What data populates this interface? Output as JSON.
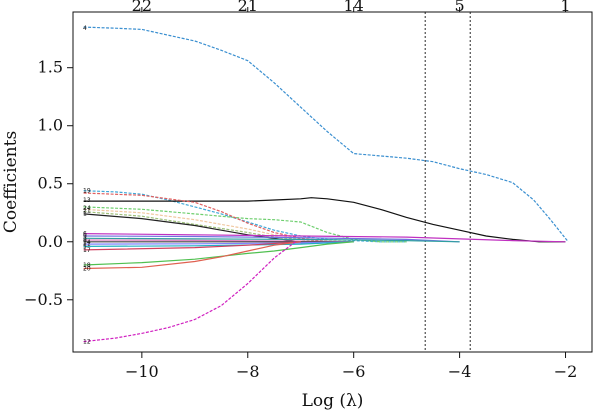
{
  "chart_data": {
    "type": "line",
    "xlabel": "Log (λ)",
    "ylabel": "Coefficients",
    "xlim": [
      -11.3,
      -1.5
    ],
    "ylim": [
      -0.95,
      1.98
    ],
    "x_ticks": [
      {
        "value": -10,
        "label": "−10"
      },
      {
        "value": -8,
        "label": "−8"
      },
      {
        "value": -6,
        "label": "−6"
      },
      {
        "value": -4,
        "label": "−4"
      },
      {
        "value": -2,
        "label": "−2"
      }
    ],
    "y_ticks": [
      {
        "value": -0.5,
        "label": "−0.5"
      },
      {
        "value": 0.0,
        "label": "0.0"
      },
      {
        "value": 0.5,
        "label": "0.5"
      },
      {
        "value": 1.0,
        "label": "1.0"
      },
      {
        "value": 1.5,
        "label": "1.5"
      }
    ],
    "top_axis": [
      {
        "value": -10,
        "label": "22"
      },
      {
        "value": -8,
        "label": "21"
      },
      {
        "value": -6,
        "label": "14"
      },
      {
        "value": -4,
        "label": "5"
      },
      {
        "value": -2,
        "label": "1"
      }
    ],
    "reference_lines_x": [
      -4.65,
      -3.8
    ],
    "grid": false,
    "series": [
      {
        "name": "4",
        "color": "#3a8fd0",
        "dashed": true,
        "x": [
          -11.1,
          -10.5,
          -10,
          -9,
          -8.5,
          -8,
          -7.5,
          -7,
          -6.5,
          -6,
          -5.5,
          -5,
          -4.5,
          -4,
          -3.5,
          -3,
          -2.6,
          -2.3,
          -1.95
        ],
        "y": [
          1.85,
          1.84,
          1.83,
          1.73,
          1.65,
          1.56,
          1.37,
          1.16,
          0.95,
          0.76,
          0.74,
          0.72,
          0.69,
          0.63,
          0.58,
          0.51,
          0.36,
          0.2,
          0.0
        ]
      },
      {
        "name": "19",
        "color": "#40a8d8",
        "dashed": true,
        "x": [
          -11.1,
          -10.5,
          -10,
          -9.5,
          -9,
          -8.5,
          -8,
          -7.5,
          -7,
          -6.5,
          -6,
          -5.5,
          -5
        ],
        "y": [
          0.44,
          0.43,
          0.41,
          0.36,
          0.3,
          0.24,
          0.17,
          0.1,
          0.05,
          0.02,
          0.01,
          0.0,
          0.0
        ]
      },
      {
        "name": "13",
        "color": "#111111",
        "dashed": false,
        "x": [
          -11.1,
          -10,
          -9,
          -8,
          -7.5,
          -7,
          -6.8,
          -6.5,
          -6,
          -5.5,
          -5,
          -4.5,
          -4,
          -3.5,
          -3,
          -2.5,
          -2
        ],
        "y": [
          0.35,
          0.35,
          0.35,
          0.35,
          0.36,
          0.37,
          0.38,
          0.37,
          0.34,
          0.28,
          0.21,
          0.15,
          0.1,
          0.05,
          0.02,
          0.0,
          0.0
        ]
      },
      {
        "name": "24",
        "color": "#6fcf6f",
        "dashed": true,
        "x": [
          -11.1,
          -10,
          -9,
          -8,
          -7.5,
          -7,
          -6.5,
          -6,
          -5.5,
          -5
        ],
        "y": [
          0.3,
          0.28,
          0.24,
          0.2,
          0.19,
          0.17,
          0.08,
          0.02,
          0.0,
          0.0
        ]
      },
      {
        "name": "21",
        "color": "#f0c8a0",
        "dashed": true,
        "x": [
          -11.1,
          -10,
          -9,
          -8.5,
          -8,
          -7.5,
          -7,
          -6.5,
          -6
        ],
        "y": [
          0.28,
          0.25,
          0.19,
          0.15,
          0.11,
          0.06,
          0.03,
          0.01,
          0.0
        ]
      },
      {
        "name": "1",
        "color": "#9ec07a",
        "dashed": true,
        "x": [
          -11.1,
          -10,
          -9,
          -8,
          -7.5,
          -7,
          -6.5
        ],
        "y": [
          0.26,
          0.22,
          0.15,
          0.08,
          0.04,
          0.02,
          0.0
        ]
      },
      {
        "name": "2",
        "color": "#e06060",
        "dashed": true,
        "x": [
          -11.1,
          -10,
          -9,
          -8.5,
          -8,
          -7.5,
          -7,
          -6.5
        ],
        "y": [
          0.42,
          0.4,
          0.34,
          0.26,
          0.16,
          0.08,
          0.03,
          0.0
        ]
      },
      {
        "name": "16",
        "color": "#222222",
        "dashed": false,
        "x": [
          -11.1,
          -10,
          -9,
          -8.5,
          -8,
          -7.5,
          -7
        ],
        "y": [
          0.24,
          0.2,
          0.14,
          0.1,
          0.06,
          0.03,
          0.0
        ]
      },
      {
        "name": "6",
        "color": "#c030c0",
        "dashed": false,
        "x": [
          -11.1,
          -9,
          -7,
          -5,
          -3,
          -2
        ],
        "y": [
          0.07,
          0.06,
          0.05,
          0.04,
          0.01,
          0.0
        ]
      },
      {
        "name": "9",
        "color": "#7070e0",
        "dashed": false,
        "x": [
          -11.1,
          -9,
          -7,
          -5,
          -4
        ],
        "y": [
          0.05,
          0.045,
          0.035,
          0.02,
          0.0
        ]
      },
      {
        "name": "3",
        "color": "#30a0a0",
        "dashed": false,
        "x": [
          -11.1,
          -9,
          -7,
          -5,
          -4
        ],
        "y": [
          0.03,
          0.025,
          0.02,
          0.01,
          0.0
        ]
      },
      {
        "name": "8",
        "color": "#e080c0",
        "dashed": false,
        "x": [
          -11.1,
          -9,
          -7,
          -6
        ],
        "y": [
          0.015,
          0.012,
          0.006,
          0.0
        ]
      },
      {
        "name": "14",
        "color": "#404040",
        "dashed": false,
        "x": [
          -11.1,
          -9,
          -7,
          -6
        ],
        "y": [
          0.0,
          0.0,
          0.0,
          0.0
        ]
      },
      {
        "name": "11",
        "color": "#8080ff",
        "dashed": false,
        "x": [
          -11.1,
          -9,
          -7,
          -6
        ],
        "y": [
          -0.02,
          -0.018,
          -0.01,
          0.0
        ]
      },
      {
        "name": "5",
        "color": "#20b0c0",
        "dashed": false,
        "x": [
          -11.1,
          -9,
          -7,
          -6
        ],
        "y": [
          -0.04,
          -0.035,
          -0.02,
          0.0
        ]
      },
      {
        "name": "17",
        "color": "#d04060",
        "dashed": false,
        "x": [
          -11.1,
          -9,
          -8,
          -7
        ],
        "y": [
          -0.07,
          -0.05,
          -0.03,
          0.0
        ]
      },
      {
        "name": "18",
        "color": "#50c050",
        "dashed": false,
        "x": [
          -11.1,
          -10,
          -9,
          -8,
          -7.5,
          -7,
          -6.5,
          -6
        ],
        "y": [
          -0.2,
          -0.18,
          -0.15,
          -0.1,
          -0.08,
          -0.05,
          -0.02,
          0.0
        ]
      },
      {
        "name": "20",
        "color": "#e06050",
        "dashed": false,
        "x": [
          -11.1,
          -10,
          -9,
          -8.5,
          -8,
          -7.5,
          -7
        ],
        "y": [
          -0.23,
          -0.22,
          -0.17,
          -0.13,
          -0.08,
          -0.03,
          0.0
        ]
      },
      {
        "name": "12",
        "color": "#d020c0",
        "dashed": true,
        "x": [
          -11.1,
          -10.5,
          -10,
          -9.5,
          -9,
          -8.5,
          -8,
          -7.5,
          -7.1
        ],
        "y": [
          -0.86,
          -0.83,
          -0.79,
          -0.74,
          -0.67,
          -0.55,
          -0.36,
          -0.14,
          0.0
        ]
      }
    ],
    "series_tag_labels": [
      {
        "label": "4",
        "y": 1.84
      },
      {
        "label": "19",
        "y": 0.44
      },
      {
        "label": "13",
        "y": 0.36
      },
      {
        "label": "24",
        "y": 0.29
      },
      {
        "label": "21",
        "y": 0.27
      },
      {
        "label": "1",
        "y": 0.245
      },
      {
        "label": "6",
        "y": 0.07
      },
      {
        "label": "9",
        "y": 0.05
      },
      {
        "label": "3",
        "y": 0.03
      },
      {
        "label": "8",
        "y": 0.015
      },
      {
        "label": "14",
        "y": 0.0
      },
      {
        "label": "11",
        "y": -0.02
      },
      {
        "label": "5",
        "y": -0.04
      },
      {
        "label": "17",
        "y": -0.07
      },
      {
        "label": "18",
        "y": -0.2
      },
      {
        "label": "20",
        "y": -0.23
      },
      {
        "label": "12",
        "y": -0.86
      }
    ]
  }
}
